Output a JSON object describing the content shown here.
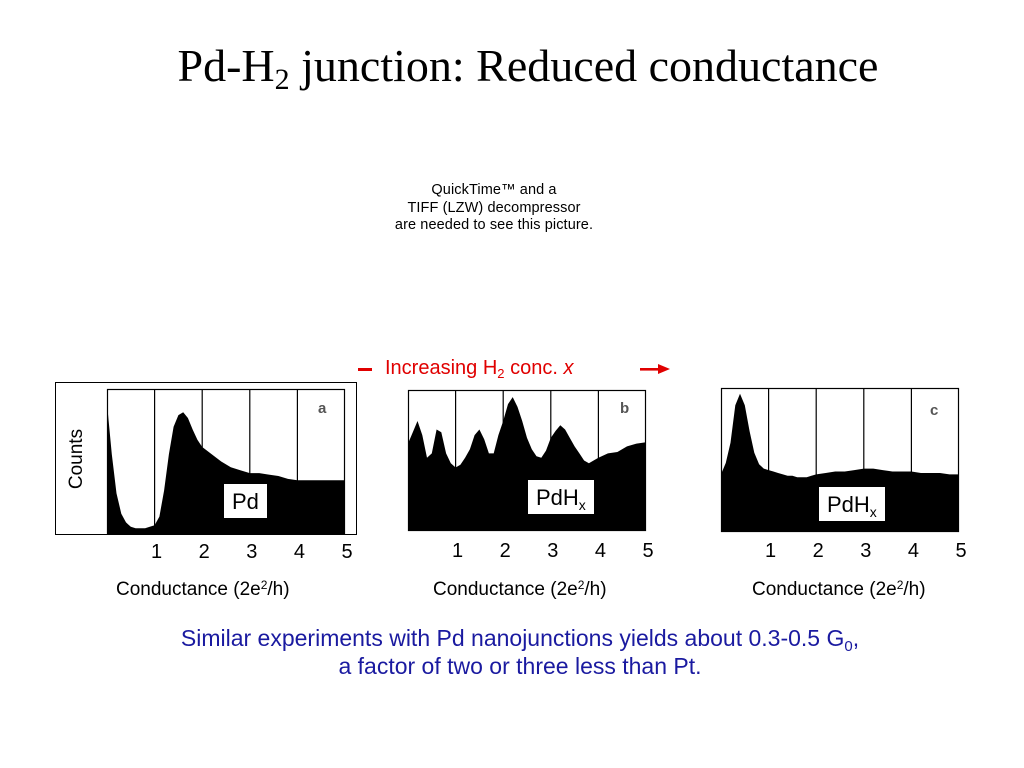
{
  "title": {
    "main": "Pd-H",
    "sub": "2",
    "rest": " junction: Reduced conductance"
  },
  "quicktime": {
    "line1": "QuickTime™ and a",
    "line2": "TIFF (LZW) decompressor",
    "line3": "are needed to see this picture."
  },
  "arrow_label": {
    "pre": "Increasing H",
    "sub": "2",
    "mid": " conc. ",
    "var": "x"
  },
  "colors": {
    "accent_red": "#e00000",
    "caption_blue": "#1a1aa0",
    "fill": "#000000"
  },
  "chart_data": [
    {
      "type": "area",
      "panel_letter": "a",
      "label": "Pd",
      "label_sub": "",
      "ylabel": "Counts",
      "xlabel": "Conductance (2e",
      "xlabel_sup": "2",
      "xlabel_end": "/h)",
      "xticks": [
        "1",
        "2",
        "3",
        "4",
        "5"
      ],
      "xlim": [
        0,
        5
      ],
      "ylim": [
        0,
        1
      ],
      "grid": true,
      "x": [
        0.0,
        0.1,
        0.2,
        0.3,
        0.4,
        0.5,
        0.6,
        0.7,
        0.8,
        0.9,
        1.0,
        1.1,
        1.2,
        1.3,
        1.4,
        1.5,
        1.6,
        1.7,
        1.8,
        1.9,
        2.0,
        2.2,
        2.4,
        2.6,
        2.8,
        3.0,
        3.2,
        3.4,
        3.6,
        3.8,
        4.0,
        4.2,
        4.4,
        4.6,
        4.8,
        5.0
      ],
      "values": [
        0.9,
        0.55,
        0.28,
        0.14,
        0.08,
        0.05,
        0.04,
        0.04,
        0.04,
        0.05,
        0.06,
        0.12,
        0.3,
        0.55,
        0.74,
        0.82,
        0.84,
        0.8,
        0.72,
        0.65,
        0.6,
        0.55,
        0.5,
        0.46,
        0.44,
        0.42,
        0.42,
        0.41,
        0.4,
        0.38,
        0.37,
        0.37,
        0.37,
        0.37,
        0.37,
        0.37
      ]
    },
    {
      "type": "area",
      "panel_letter": "b",
      "label": "PdH",
      "label_sub": "x",
      "ylabel": "",
      "xlabel": "Conductance (2e",
      "xlabel_sup": "2",
      "xlabel_end": "/h)",
      "xticks": [
        "1",
        "2",
        "3",
        "4",
        "5"
      ],
      "xlim": [
        0,
        5
      ],
      "ylim": [
        0,
        1
      ],
      "grid": true,
      "x": [
        0.0,
        0.1,
        0.2,
        0.3,
        0.4,
        0.5,
        0.6,
        0.7,
        0.8,
        0.9,
        1.0,
        1.1,
        1.2,
        1.3,
        1.4,
        1.5,
        1.6,
        1.7,
        1.8,
        1.9,
        2.0,
        2.1,
        2.2,
        2.3,
        2.4,
        2.5,
        2.6,
        2.7,
        2.8,
        2.9,
        3.0,
        3.1,
        3.2,
        3.3,
        3.4,
        3.5,
        3.6,
        3.7,
        3.8,
        3.9,
        4.0,
        4.2,
        4.4,
        4.6,
        4.8,
        5.0
      ],
      "values": [
        0.62,
        0.7,
        0.78,
        0.68,
        0.52,
        0.55,
        0.72,
        0.7,
        0.55,
        0.48,
        0.45,
        0.47,
        0.52,
        0.58,
        0.68,
        0.72,
        0.65,
        0.55,
        0.55,
        0.68,
        0.78,
        0.9,
        0.95,
        0.88,
        0.78,
        0.66,
        0.58,
        0.53,
        0.52,
        0.57,
        0.66,
        0.71,
        0.75,
        0.72,
        0.66,
        0.6,
        0.55,
        0.5,
        0.48,
        0.5,
        0.52,
        0.55,
        0.56,
        0.6,
        0.62,
        0.63
      ]
    },
    {
      "type": "area",
      "panel_letter": "c",
      "label": "PdH",
      "label_sub": "x",
      "ylabel": "",
      "xlabel": "Conductance (2e",
      "xlabel_sup": "2",
      "xlabel_end": "/h)",
      "xticks": [
        "1",
        "2",
        "3",
        "4",
        "5"
      ],
      "xlim": [
        0,
        5
      ],
      "ylim": [
        0,
        1
      ],
      "grid": true,
      "x": [
        0.0,
        0.1,
        0.2,
        0.3,
        0.4,
        0.5,
        0.6,
        0.7,
        0.8,
        0.9,
        1.0,
        1.1,
        1.2,
        1.3,
        1.4,
        1.5,
        1.6,
        1.7,
        1.8,
        1.9,
        2.0,
        2.2,
        2.4,
        2.6,
        2.8,
        3.0,
        3.2,
        3.4,
        3.6,
        3.8,
        4.0,
        4.2,
        4.4,
        4.6,
        4.8,
        5.0
      ],
      "values": [
        0.4,
        0.48,
        0.62,
        0.88,
        0.96,
        0.88,
        0.7,
        0.55,
        0.47,
        0.44,
        0.43,
        0.42,
        0.41,
        0.4,
        0.39,
        0.39,
        0.38,
        0.38,
        0.38,
        0.39,
        0.4,
        0.41,
        0.42,
        0.42,
        0.43,
        0.44,
        0.44,
        0.43,
        0.42,
        0.42,
        0.42,
        0.41,
        0.41,
        0.41,
        0.4,
        0.4
      ]
    }
  ],
  "caption": {
    "line1_pre": "Similar experiments with Pd nanojunctions yields about 0.3-0.5 G",
    "line1_sub": "0",
    "line1_post": ",",
    "line2": "a factor of two or three less than Pt."
  }
}
